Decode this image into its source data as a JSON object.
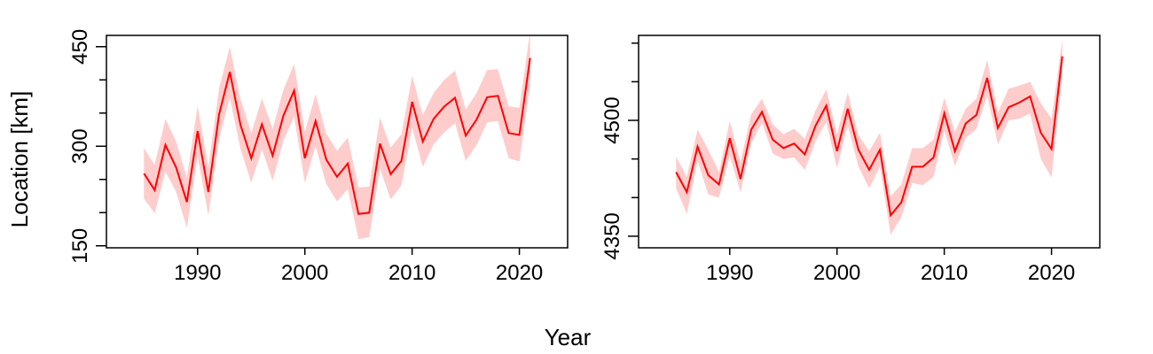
{
  "figure": {
    "xlabel": "Year",
    "ylabel": "Location [km]"
  },
  "chart_data": [
    {
      "type": "line",
      "title": "",
      "xlim": [
        1981.5,
        2024.5
      ],
      "ylim": [
        147,
        467
      ],
      "xticks": [
        1990,
        2000,
        2010,
        2020
      ],
      "xtick_labels": [
        "1990",
        "2000",
        "2010",
        "2020"
      ],
      "yticks": [
        150,
        300,
        450
      ],
      "ytick_labels": [
        "150",
        "300",
        "450"
      ],
      "yticks_minor": [
        200,
        250,
        350,
        400
      ],
      "series": [
        {
          "color": "#ff0000",
          "band_color": "#ffcccc",
          "x": [
            1985,
            1986,
            1987,
            1988,
            1989,
            1990,
            1991,
            1992,
            1993,
            1994,
            1995,
            1996,
            1997,
            1998,
            1999,
            2000,
            2001,
            2002,
            2003,
            2004,
            2005,
            2006,
            2007,
            2008,
            2009,
            2010,
            2011,
            2012,
            2013,
            2014,
            2015,
            2016,
            2017,
            2018,
            2019,
            2020,
            2021
          ],
          "y": [
            259,
            234,
            302,
            268,
            216,
            323,
            231,
            348,
            412,
            332,
            282,
            333,
            286,
            346,
            384,
            282,
            338,
            280,
            254,
            274,
            198,
            200,
            304,
            258,
            278,
            367,
            307,
            341,
            360,
            373,
            316,
            340,
            374,
            376,
            320,
            317,
            433
          ],
          "lower": [
            221,
            199,
            262,
            231,
            177,
            285,
            196,
            311,
            373,
            296,
            245,
            296,
            248,
            308,
            345,
            245,
            300,
            243,
            217,
            236,
            160,
            163,
            266,
            220,
            241,
            328,
            269,
            303,
            321,
            335,
            278,
            302,
            336,
            338,
            282,
            277,
            393
          ],
          "upper": [
            297,
            272,
            341,
            307,
            253,
            361,
            268,
            387,
            450,
            371,
            320,
            372,
            326,
            385,
            424,
            322,
            378,
            319,
            293,
            313,
            238,
            239,
            343,
            298,
            318,
            406,
            347,
            380,
            400,
            414,
            355,
            380,
            415,
            416,
            360,
            358,
            473
          ]
        }
      ]
    },
    {
      "type": "line",
      "title": "",
      "xlim": [
        1981.5,
        2024.5
      ],
      "ylim": [
        4335,
        4610
      ],
      "xticks": [
        1990,
        2000,
        2010,
        2020
      ],
      "xtick_labels": [
        "1990",
        "2000",
        "2010",
        "2020"
      ],
      "yticks": [
        4350,
        4500
      ],
      "ytick_labels": [
        "4350",
        "4500"
      ],
      "yticks_minor": [
        4400,
        4450,
        4550,
        4600
      ],
      "series": [
        {
          "color": "#ff0000",
          "band_color": "#ffcccc",
          "x": [
            1985,
            1986,
            1987,
            1988,
            1989,
            1990,
            1991,
            1992,
            1993,
            1994,
            1995,
            1996,
            1997,
            1998,
            1999,
            2000,
            2001,
            2002,
            2003,
            2004,
            2005,
            2006,
            2007,
            2008,
            2009,
            2010,
            2011,
            2012,
            2013,
            2014,
            2015,
            2016,
            2017,
            2018,
            2019,
            2020,
            2021
          ],
          "y": [
            4433,
            4407,
            4466,
            4429,
            4417,
            4477,
            4424,
            4488,
            4511,
            4475,
            4464,
            4470,
            4456,
            4493,
            4519,
            4460,
            4515,
            4462,
            4436,
            4462,
            4377,
            4394,
            4440,
            4440,
            4452,
            4509,
            4460,
            4496,
            4507,
            4555,
            4490,
            4517,
            4523,
            4531,
            4484,
            4463,
            4583
          ],
          "lower": [
            4412,
            4379,
            4448,
            4404,
            4400,
            4454,
            4407,
            4470,
            4497,
            4457,
            4450,
            4452,
            4436,
            4473,
            4498,
            4438,
            4494,
            4440,
            4412,
            4440,
            4352,
            4375,
            4419,
            4416,
            4427,
            4487,
            4441,
            4477,
            4489,
            4532,
            4469,
            4500,
            4502,
            4509,
            4450,
            4426,
            4560
          ],
          "upper": [
            4453,
            4427,
            4488,
            4462,
            4433,
            4499,
            4446,
            4508,
            4528,
            4495,
            4482,
            4489,
            4476,
            4513,
            4540,
            4482,
            4536,
            4481,
            4460,
            4484,
            4402,
            4417,
            4464,
            4464,
            4475,
            4529,
            4485,
            4515,
            4528,
            4578,
            4510,
            4541,
            4545,
            4550,
            4522,
            4502,
            4605
          ]
        }
      ]
    }
  ]
}
